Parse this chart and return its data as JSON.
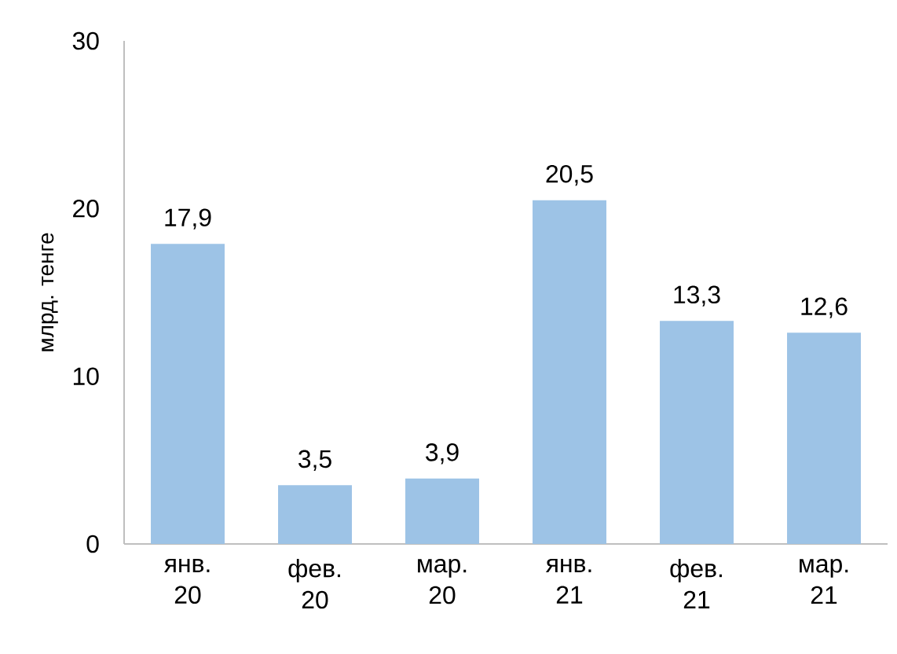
{
  "chart_data": {
    "type": "bar",
    "ylabel": "млрд. тенге",
    "categories": [
      "янв. 20",
      "фев. 20",
      "мар. 20",
      "янв. 21",
      "фев. 21",
      "мар. 21"
    ],
    "values": [
      17.9,
      3.5,
      3.9,
      20.5,
      13.3,
      12.6
    ],
    "value_labels": [
      "17,9",
      "3,5",
      "3,9",
      "20,5",
      "13,3",
      "12,6"
    ],
    "color": "#9dc3e6",
    "ylim": [
      0,
      30
    ],
    "yticks": [
      0,
      10,
      20,
      30
    ]
  }
}
